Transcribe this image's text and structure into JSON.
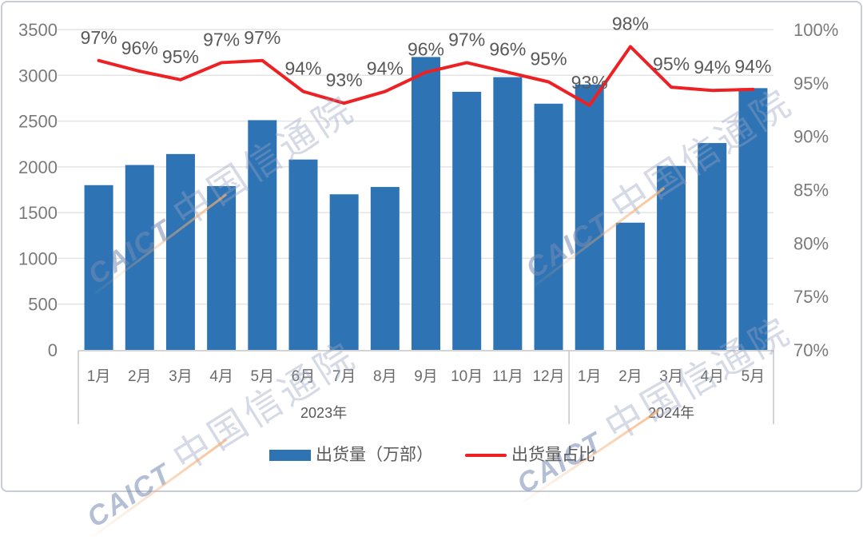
{
  "watermark": {
    "brand": "CAICT",
    "org": "中国信通院"
  },
  "legend": {
    "items": [
      {
        "label": "出货量（万部）",
        "marker": "bar",
        "color": "#2e74b5"
      },
      {
        "label": "出货量占比",
        "marker": "line",
        "color": "#ed2024"
      }
    ]
  },
  "chart_data": {
    "type": "combo-bar-line",
    "categories": [
      "1月",
      "2月",
      "3月",
      "4月",
      "5月",
      "6月",
      "7月",
      "8月",
      "9月",
      "10月",
      "11月",
      "12月",
      "1月",
      "2月",
      "3月",
      "4月",
      "5月"
    ],
    "category_groups": [
      {
        "label": "2023年",
        "from": 0,
        "to": 11
      },
      {
        "label": "2024年",
        "from": 12,
        "to": 16
      }
    ],
    "series": [
      {
        "name": "出货量（万部）",
        "type": "bar",
        "axis": "left",
        "color": "#2e74b5",
        "values": [
          1800,
          2020,
          2140,
          1790,
          2510,
          2080,
          1700,
          1780,
          3200,
          2820,
          2980,
          2690,
          2900,
          1390,
          2010,
          2260,
          2860
        ]
      },
      {
        "name": "出货量占比",
        "type": "line",
        "axis": "right",
        "color": "#ed2024",
        "values": [
          97.1,
          96.1,
          95.3,
          96.9,
          97.1,
          94.2,
          93.1,
          94.2,
          96.0,
          96.9,
          96.0,
          95.1,
          92.9,
          98.4,
          94.6,
          94.3,
          94.4
        ],
        "labels": [
          "97%",
          "96%",
          "95%",
          "97%",
          "97%",
          "94%",
          "93%",
          "94%",
          "96%",
          "97%",
          "96%",
          "95%",
          "93%",
          "98%",
          "95%",
          "94%",
          "94%"
        ]
      }
    ],
    "left_axis": {
      "min": 0,
      "max": 3500,
      "step": 500,
      "tick_labels": [
        "0",
        "500",
        "1000",
        "1500",
        "2000",
        "2500",
        "3000",
        "3500"
      ]
    },
    "right_axis": {
      "min": 70,
      "max": 100,
      "step": 5,
      "tick_labels": [
        "70%",
        "75%",
        "80%",
        "85%",
        "90%",
        "95%",
        "100%"
      ]
    },
    "grid": true,
    "legend_position": "bottom",
    "style": {
      "grid_color": "#e4e4e4",
      "axis_line_color": "#c6c6c6",
      "tick_text_color": "#7a7a7a",
      "category_text_color": "#6b6b6b",
      "data_label_color": "#595959"
    }
  }
}
